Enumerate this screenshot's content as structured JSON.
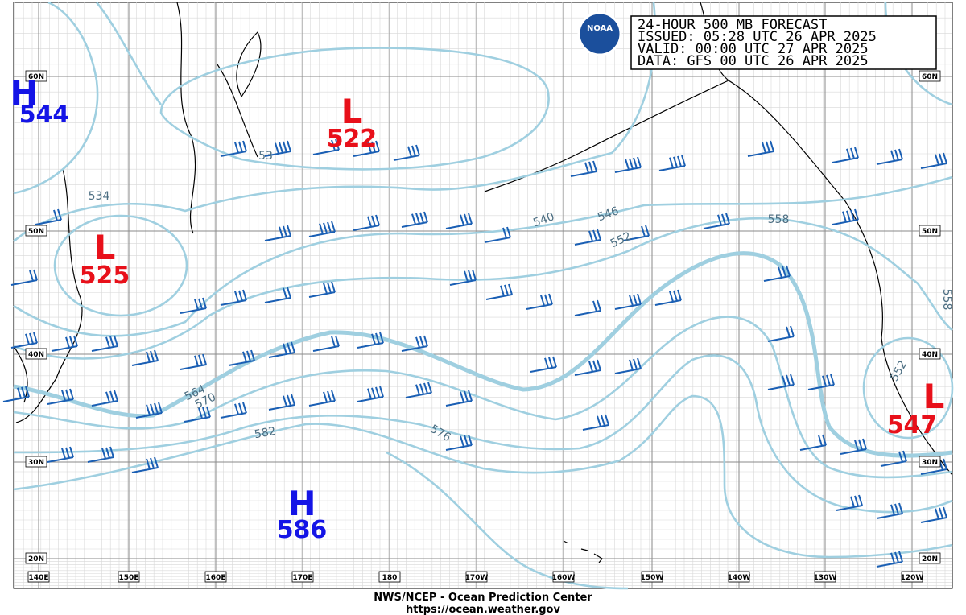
{
  "header": {
    "lines": [
      "24-HOUR 500 MB FORECAST",
      "ISSUED: 05:28 UTC 26 APR 2025",
      "VALID:  00:00 UTC 27 APR 2025",
      "DATA:  GFS 00 UTC 26 APR 2025"
    ]
  },
  "logo": "NOAA",
  "systems": [
    {
      "label": "H",
      "value": 544
    },
    {
      "label": "L",
      "value": 522
    },
    {
      "label": "L",
      "value": 525
    },
    {
      "label": "H",
      "value": 586
    },
    {
      "label": "L",
      "value": 547
    }
  ],
  "contour_labels": [
    534,
    53,
    540,
    546,
    552,
    558,
    564,
    570,
    576,
    582,
    552,
    558
  ],
  "latitude_labels": [
    "60N",
    "50N",
    "40N",
    "30N",
    "20N"
  ],
  "longitude_labels": [
    "140E",
    "150E",
    "160E",
    "170E",
    "180",
    "170W",
    "160W",
    "150W",
    "140W",
    "130W",
    "120W"
  ],
  "footer": {
    "agency": "NWS/NCEP - Ocean Prediction Center",
    "url": "https://ocean.weather.gov"
  }
}
